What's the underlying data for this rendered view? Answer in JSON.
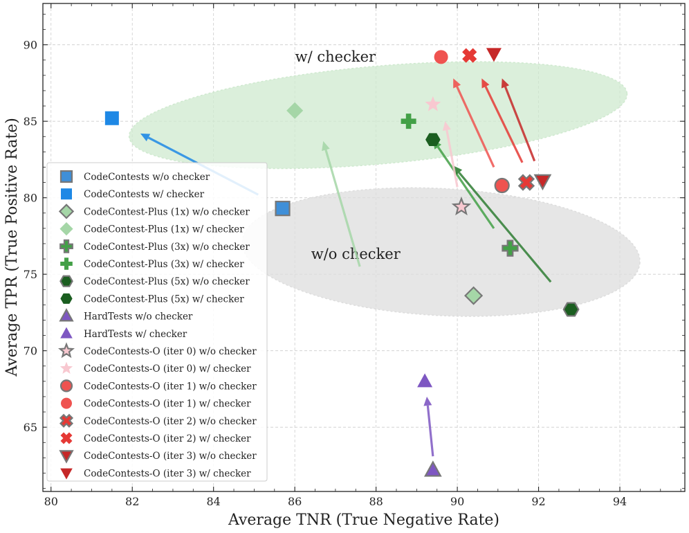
{
  "chart_data": {
    "type": "scatter",
    "xlabel": "Average TNR (True Negative Rate)",
    "ylabel": "Average TPR (True Positive Rate)",
    "xlim": [
      79.8,
      95.6
    ],
    "ylim": [
      60.8,
      92.7
    ],
    "xticks": [
      80,
      82,
      84,
      86,
      88,
      90,
      92,
      94
    ],
    "yticks": [
      65,
      70,
      75,
      80,
      85,
      90
    ],
    "grid": true,
    "legend_position": "lower-left",
    "regions": [
      {
        "label": "w/ checker",
        "cx": 88.05,
        "cy": 85.4,
        "rx": 6.15,
        "ry": 3.2,
        "rotation_deg": 5,
        "color": "#cfe9cf",
        "label_x": 87.0,
        "label_y": 88.9
      },
      {
        "label": "w/o checker",
        "cx": 89.6,
        "cy": 76.45,
        "rx": 4.9,
        "ry": 4.15,
        "rotation_deg": -3,
        "color": "#dddddd",
        "label_x": 87.5,
        "label_y": 76.0
      }
    ],
    "series": [
      {
        "name": "CodeContests w/o checker",
        "marker": "square",
        "color": "#3f8fd8",
        "edge": "#777777",
        "x": 85.7,
        "y": 79.3
      },
      {
        "name": "CodeContests w/ checker",
        "marker": "square",
        "color": "#1e88e5",
        "edge": "none",
        "x": 81.5,
        "y": 85.2
      },
      {
        "name": "CodeContest-Plus (1x) w/o checker",
        "marker": "diamond",
        "color": "#a5d6a7",
        "edge": "#777777",
        "x": 90.4,
        "y": 73.6
      },
      {
        "name": "CodeContest-Plus (1x) w/ checker",
        "marker": "diamond",
        "color": "#a5d6a7",
        "edge": "none",
        "x": 86.0,
        "y": 85.7
      },
      {
        "name": "CodeContest-Plus (3x) w/o checker",
        "marker": "plus",
        "color": "#43a047",
        "edge": "#777777",
        "x": 91.3,
        "y": 76.7
      },
      {
        "name": "CodeContest-Plus (3x) w/ checker",
        "marker": "plus",
        "color": "#43a047",
        "edge": "none",
        "x": 88.8,
        "y": 85.0
      },
      {
        "name": "CodeContest-Plus (5x) w/o checker",
        "marker": "hexagon",
        "color": "#1b5e20",
        "edge": "#777777",
        "x": 92.8,
        "y": 72.7
      },
      {
        "name": "CodeContest-Plus (5x) w/ checker",
        "marker": "hexagon",
        "color": "#1b5e20",
        "edge": "none",
        "x": 89.4,
        "y": 83.8
      },
      {
        "name": "HardTests w/o checker",
        "marker": "triangle-up",
        "color": "#7e57c2",
        "edge": "#777777",
        "x": 89.4,
        "y": 62.2
      },
      {
        "name": "HardTests w/ checker",
        "marker": "triangle-up",
        "color": "#7e57c2",
        "edge": "none",
        "x": 89.2,
        "y": 68.0
      },
      {
        "name": "CodeContests-O (iter 0) w/o checker",
        "marker": "star",
        "color": "#f8c8d0",
        "edge": "#777777",
        "x": 90.1,
        "y": 79.4
      },
      {
        "name": "CodeContests-O (iter 0) w/ checker",
        "marker": "star",
        "color": "#f8c8d0",
        "edge": "none",
        "x": 89.4,
        "y": 86.1
      },
      {
        "name": "CodeContests-O (iter 1) w/o checker",
        "marker": "circle",
        "color": "#ef5350",
        "edge": "#777777",
        "x": 91.1,
        "y": 80.8
      },
      {
        "name": "CodeContests-O (iter 1) w/ checker",
        "marker": "circle",
        "color": "#ef5350",
        "edge": "none",
        "x": 89.6,
        "y": 89.2
      },
      {
        "name": "CodeContests-O (iter 2) w/o checker",
        "marker": "x",
        "color": "#e53935",
        "edge": "#777777",
        "x": 91.7,
        "y": 81.0
      },
      {
        "name": "CodeContests-O (iter 2) w/ checker",
        "marker": "x",
        "color": "#e53935",
        "edge": "none",
        "x": 90.3,
        "y": 89.3
      },
      {
        "name": "CodeContests-O (iter 3) w/o checker",
        "marker": "triangle-down",
        "color": "#c62828",
        "edge": "#777777",
        "x": 92.1,
        "y": 81.1
      },
      {
        "name": "CodeContests-O (iter 3) w/ checker",
        "marker": "triangle-down",
        "color": "#c62828",
        "edge": "none",
        "x": 90.9,
        "y": 89.4
      }
    ],
    "arrows": [
      {
        "from": [
          85.1,
          80.2
        ],
        "to": [
          82.2,
          84.2
        ],
        "color": "#1e88e5"
      },
      {
        "from": [
          87.6,
          75.5
        ],
        "to": [
          86.7,
          83.7
        ],
        "color": "#a5d6a7"
      },
      {
        "from": [
          90.9,
          78.0
        ],
        "to": [
          89.4,
          83.8
        ],
        "color": "#43a047"
      },
      {
        "from": [
          92.3,
          74.5
        ],
        "to": [
          89.9,
          82.1
        ],
        "color": "#2e7d32"
      },
      {
        "from": [
          89.4,
          63.1
        ],
        "to": [
          89.25,
          67.0
        ],
        "color": "#7e57c2"
      },
      {
        "from": [
          90.0,
          80.7
        ],
        "to": [
          89.7,
          85.0
        ],
        "color": "#f8c8d0"
      },
      {
        "from": [
          90.9,
          82.0
        ],
        "to": [
          89.9,
          87.8
        ],
        "color": "#ef5350"
      },
      {
        "from": [
          91.6,
          82.3
        ],
        "to": [
          90.6,
          87.8
        ],
        "color": "#e53935"
      },
      {
        "from": [
          91.9,
          82.4
        ],
        "to": [
          91.1,
          87.8
        ],
        "color": "#c62828"
      }
    ]
  }
}
